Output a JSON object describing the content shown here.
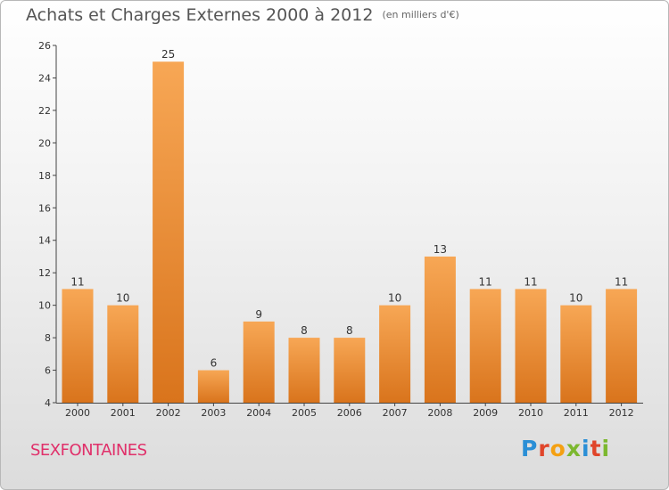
{
  "title": "Achats et Charges Externes 2000 à 2012",
  "unit_note": "(en milliers d'€)",
  "location": "SEXFONTAINES",
  "brand": {
    "text": "Proxiti",
    "letters": [
      {
        "ch": "P",
        "color": "#2b8fd6"
      },
      {
        "ch": "r",
        "color": "#e0452a"
      },
      {
        "ch": "o",
        "color": "#f4a012"
      },
      {
        "ch": "x",
        "color": "#7cb82f"
      },
      {
        "ch": "i",
        "color": "#2b8fd6"
      },
      {
        "ch": "t",
        "color": "#e0452a"
      },
      {
        "ch": "i",
        "color": "#7cb82f"
      }
    ]
  },
  "chart_data": {
    "type": "bar",
    "categories": [
      "2000",
      "2001",
      "2002",
      "2003",
      "2004",
      "2005",
      "2006",
      "2007",
      "2008",
      "2009",
      "2010",
      "2011",
      "2012"
    ],
    "values": [
      11,
      10,
      25,
      6,
      9,
      8,
      8,
      10,
      13,
      11,
      11,
      10,
      11
    ],
    "ylim": [
      4,
      26
    ],
    "yticks": [
      4,
      6,
      8,
      10,
      12,
      14,
      16,
      18,
      20,
      22,
      24,
      26
    ],
    "grid": false,
    "bar_color_top": "#f7a755",
    "bar_color_bottom": "#d9741c",
    "title": "Achats et Charges Externes 2000 à 2012",
    "xlabel": "",
    "ylabel": ""
  }
}
